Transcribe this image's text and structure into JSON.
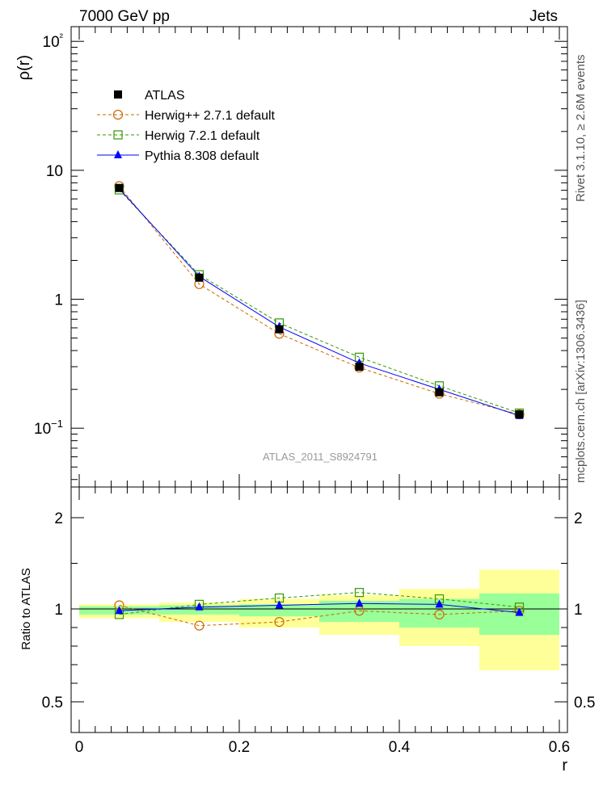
{
  "header": {
    "left": "7000 GeV pp",
    "right": "Jets"
  },
  "side_labels": {
    "rivet": "Rivet 3.1.10, ≥ 2.6M events",
    "mcplots": "mcplots.cern.ch [arXiv:1306.3436]"
  },
  "watermark": "ATLAS_2011_S8924791",
  "colors": {
    "atlas": "#000000",
    "herwigpp": "#cc6600",
    "herwig7": "#339900",
    "pythia": "#0000ff",
    "band_outer": "#ffff99",
    "band_inner": "#99ff99"
  },
  "chart_data": [
    {
      "type": "line",
      "panel": "main",
      "xlabel": "r",
      "ylabel": "ρ(r)",
      "yscale": "log",
      "xlim": [
        0,
        0.6
      ],
      "ylim": [
        0.035,
        130
      ],
      "x": [
        0.05,
        0.15,
        0.25,
        0.35,
        0.45,
        0.55
      ],
      "ytick_labels": [
        "10−1",
        "1",
        "10",
        "10²"
      ],
      "ytick_values": [
        0.1,
        1,
        10,
        100
      ],
      "legend_position": "top-left",
      "series": [
        {
          "name": "ATLAS",
          "marker": "filled-square",
          "values": [
            7.3,
            1.47,
            0.585,
            0.3,
            0.19,
            0.128
          ]
        },
        {
          "name": "Herwig++ 2.7.1 default",
          "marker": "open-circle",
          "line": "dashed",
          "values": [
            7.55,
            1.31,
            0.54,
            0.295,
            0.185,
            0.128
          ]
        },
        {
          "name": "Herwig 7.2.1 default",
          "marker": "open-square",
          "line": "dashed",
          "values": [
            7.05,
            1.55,
            0.655,
            0.355,
            0.213,
            0.131
          ]
        },
        {
          "name": "Pythia 8.308 default",
          "marker": "filled-triangle",
          "line": "solid",
          "values": [
            7.2,
            1.5,
            0.61,
            0.32,
            0.2,
            0.125
          ]
        }
      ]
    },
    {
      "type": "line",
      "panel": "ratio",
      "xlabel": "r",
      "ylabel": "Ratio to ATLAS",
      "xlim": [
        0,
        0.6
      ],
      "ylim": [
        0.35,
        2.5
      ],
      "ytick_values": [
        0.5,
        1,
        2
      ],
      "ytick_labels": [
        "0.5",
        "1",
        "2"
      ],
      "xtick_values": [
        0,
        0.2,
        0.4,
        0.6
      ],
      "xtick_labels": [
        "0",
        "0.2",
        "0.4",
        "0.6"
      ],
      "x": [
        0.05,
        0.15,
        0.25,
        0.35,
        0.45,
        0.55
      ],
      "bands": {
        "bin_edges": [
          0,
          0.1,
          0.2,
          0.3,
          0.4,
          0.5,
          0.6
        ],
        "outer_low": [
          0.95,
          0.93,
          0.9,
          0.86,
          0.8,
          0.67
        ],
        "outer_high": [
          1.05,
          1.07,
          1.11,
          1.15,
          1.22,
          1.43
        ],
        "inner_low": [
          0.97,
          0.97,
          0.96,
          0.93,
          0.9,
          0.86
        ],
        "inner_high": [
          1.03,
          1.04,
          1.05,
          1.09,
          1.11,
          1.17
        ]
      },
      "series": [
        {
          "name": "Herwig++ 2.7.1 default",
          "values": [
            1.04,
            0.91,
            0.93,
            0.99,
            0.97,
            0.99
          ]
        },
        {
          "name": "Herwig 7.2.1 default",
          "values": [
            0.97,
            1.05,
            1.12,
            1.18,
            1.11,
            1.02
          ]
        },
        {
          "name": "Pythia 8.308 default",
          "values": [
            0.99,
            1.02,
            1.04,
            1.06,
            1.05,
            0.98
          ]
        }
      ]
    }
  ]
}
